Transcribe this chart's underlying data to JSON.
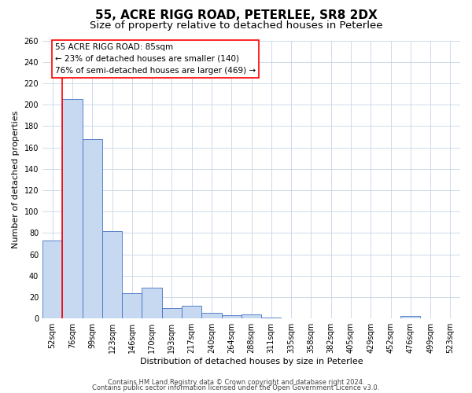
{
  "title": "55, ACRE RIGG ROAD, PETERLEE, SR8 2DX",
  "subtitle": "Size of property relative to detached houses in Peterlee",
  "xlabel": "Distribution of detached houses by size in Peterlee",
  "ylabel": "Number of detached properties",
  "bin_labels": [
    "52sqm",
    "76sqm",
    "99sqm",
    "123sqm",
    "146sqm",
    "170sqm",
    "193sqm",
    "217sqm",
    "240sqm",
    "264sqm",
    "288sqm",
    "311sqm",
    "335sqm",
    "358sqm",
    "382sqm",
    "405sqm",
    "429sqm",
    "452sqm",
    "476sqm",
    "499sqm",
    "523sqm"
  ],
  "bar_heights": [
    73,
    205,
    168,
    82,
    24,
    29,
    10,
    12,
    5,
    3,
    4,
    1,
    0,
    0,
    0,
    0,
    0,
    0,
    2,
    0,
    0
  ],
  "bar_color": "#c6d9f0",
  "bar_edge_color": "#4472c4",
  "red_line_x": 0.5,
  "ylim": [
    0,
    260
  ],
  "yticks": [
    0,
    20,
    40,
    60,
    80,
    100,
    120,
    140,
    160,
    180,
    200,
    220,
    240,
    260
  ],
  "annotation_line1": "55 ACRE RIGG ROAD: 85sqm",
  "annotation_line2": "← 23% of detached houses are smaller (140)",
  "annotation_line3": "76% of semi-detached houses are larger (469) →",
  "footer_line1": "Contains HM Land Registry data © Crown copyright and database right 2024.",
  "footer_line2": "Contains public sector information licensed under the Open Government Licence v3.0.",
  "bg_color": "#ffffff",
  "grid_color": "#c8d4e8",
  "title_fontsize": 11,
  "subtitle_fontsize": 9.5,
  "axis_label_fontsize": 8,
  "tick_fontsize": 7,
  "annotation_fontsize": 7.5,
  "footer_fontsize": 6
}
